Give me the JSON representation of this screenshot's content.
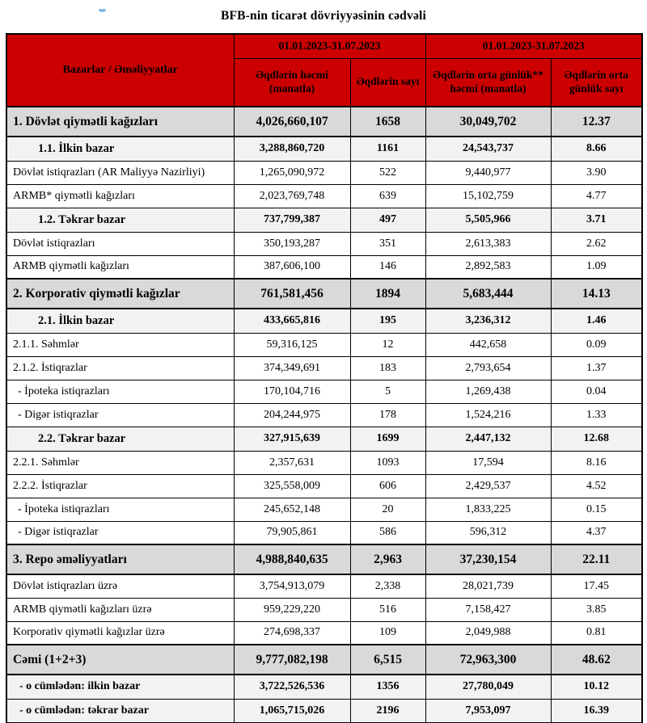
{
  "page": {
    "title": "BFB-nin ticarət dövriyyəsinin cədvəli"
  },
  "colors": {
    "header_red": "#CC0000",
    "section_gray": "#D9D9D9",
    "subsection_gray": "#F2F2F2",
    "border": "#000000"
  },
  "table": {
    "corner_header": "Bazarlar / Əməliyyatlar",
    "period_headers": [
      "01.01.2023-31.07.2023",
      "01.01.2023-31.07.2023"
    ],
    "column_headers": [
      "Əqdlərin həcmi (manatla)",
      "Əqdlərin sayı",
      "Əqdlərin orta günlük** həcmi (manatla)",
      "Əqdlərin orta günlük sayı"
    ],
    "rows": [
      {
        "style": "section",
        "label": "1. Dövlət qiymətli kağızları",
        "values": [
          "4,026,660,107",
          "1658",
          "30,049,702",
          "12.37"
        ]
      },
      {
        "style": "sub",
        "label": "1.1. İlkin bazar",
        "values": [
          "3,288,860,720",
          "1161",
          "24,543,737",
          "8.66"
        ]
      },
      {
        "style": "plain",
        "label": "Dövlət istiqrazları (AR Maliyyə Nazirliyi)",
        "values": [
          "1,265,090,972",
          "522",
          "9,440,977",
          "3.90"
        ]
      },
      {
        "style": "plain",
        "label": "ARMB* qiymətli kağızları",
        "values": [
          "2,023,769,748",
          "639",
          "15,102,759",
          "4.77"
        ]
      },
      {
        "style": "sub",
        "label": "1.2. Təkrar bazar",
        "values": [
          "737,799,387",
          "497",
          "5,505,966",
          "3.71"
        ]
      },
      {
        "style": "plain",
        "label": "Dövlət istiqrazları",
        "values": [
          "350,193,287",
          "351",
          "2,613,383",
          "2.62"
        ]
      },
      {
        "style": "plain",
        "label": "ARMB qiymətli kağızları",
        "values": [
          "387,606,100",
          "146",
          "2,892,583",
          "1.09"
        ]
      },
      {
        "style": "section",
        "label": "2. Korporativ qiymətli kağızlar",
        "values": [
          "761,581,456",
          "1894",
          "5,683,444",
          "14.13"
        ]
      },
      {
        "style": "sub",
        "label": "2.1. İlkin bazar",
        "values": [
          "433,665,816",
          "195",
          "3,236,312",
          "1.46"
        ]
      },
      {
        "style": "plain",
        "label": "2.1.1. Səhmlər",
        "values": [
          "59,316,125",
          "12",
          "442,658",
          "0.09"
        ]
      },
      {
        "style": "plain",
        "label": "2.1.2. İstiqrazlar",
        "values": [
          "374,349,691",
          "183",
          "2,793,654",
          "1.37"
        ]
      },
      {
        "style": "dash",
        "label": "- İpoteka istiqrazları",
        "values": [
          "170,104,716",
          "5",
          "1,269,438",
          "0.04"
        ]
      },
      {
        "style": "dash",
        "label": "- Digər istiqrazlar",
        "values": [
          "204,244,975",
          "178",
          "1,524,216",
          "1.33"
        ]
      },
      {
        "style": "sub",
        "label": "2.2. Təkrar bazar",
        "values": [
          "327,915,639",
          "1699",
          "2,447,132",
          "12.68"
        ]
      },
      {
        "style": "plain",
        "label": "2.2.1. Səhmlər",
        "values": [
          "2,357,631",
          "1093",
          "17,594",
          "8.16"
        ]
      },
      {
        "style": "plain",
        "label": "2.2.2. İstiqrazlar",
        "values": [
          "325,558,009",
          "606",
          "2,429,537",
          "4.52"
        ]
      },
      {
        "style": "dash",
        "label": "- İpoteka istiqrazları",
        "values": [
          "245,652,148",
          "20",
          "1,833,225",
          "0.15"
        ]
      },
      {
        "style": "dash",
        "label": "- Digər istiqrazlar",
        "values": [
          "79,905,861",
          "586",
          "596,312",
          "4.37"
        ]
      },
      {
        "style": "section",
        "label": "3. Repo əməliyyatları",
        "values": [
          "4,988,840,635",
          "2,963",
          "37,230,154",
          "22.11"
        ]
      },
      {
        "style": "plain",
        "label": "Dövlət istiqrazları üzrə",
        "values": [
          "3,754,913,079",
          "2,338",
          "28,021,739",
          "17.45"
        ]
      },
      {
        "style": "plain",
        "label": "ARMB qiymətli kağızları üzrə",
        "values": [
          "959,229,220",
          "516",
          "7,158,427",
          "3.85"
        ]
      },
      {
        "style": "plain",
        "label": "Korporativ qiymətli kağızlar üzrə",
        "values": [
          "274,698,337",
          "109",
          "2,049,988",
          "0.81"
        ]
      },
      {
        "style": "section",
        "label": "Cəmi (1+2+3)",
        "values": [
          "9,777,082,198",
          "6,515",
          "72,963,300",
          "48.62"
        ]
      },
      {
        "style": "totsub",
        "label": "- o cümlədən: ilkin bazar",
        "values": [
          "3,722,526,536",
          "1356",
          "27,780,049",
          "10.12"
        ]
      },
      {
        "style": "totsub",
        "label": "- o cümlədən: təkrar bazar",
        "values": [
          "1,065,715,026",
          "2196",
          "7,953,097",
          "16.39"
        ]
      }
    ]
  }
}
